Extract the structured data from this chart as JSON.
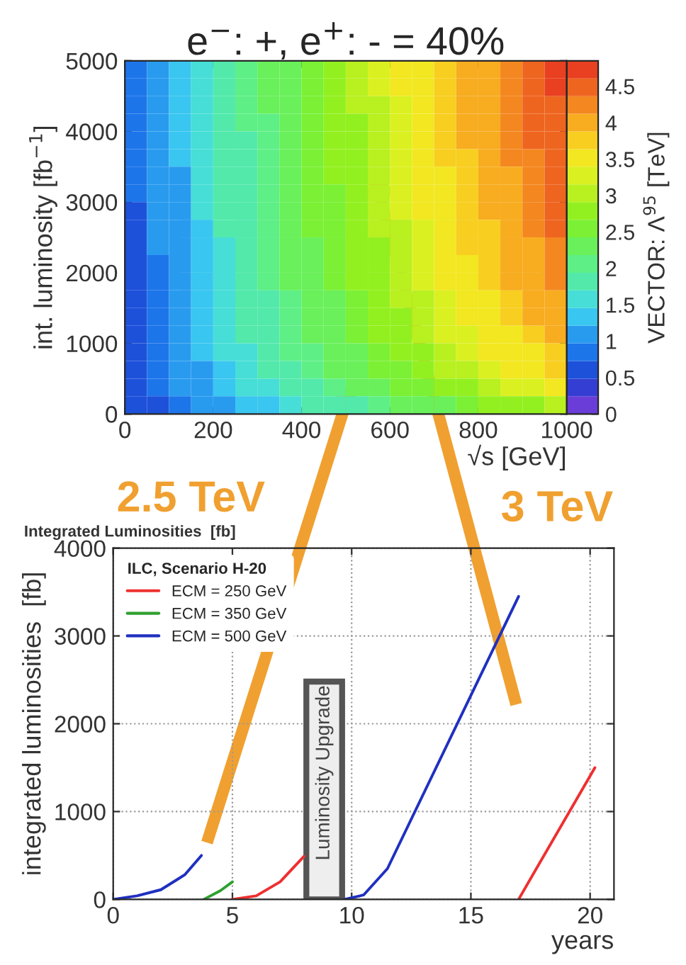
{
  "chart_data": [
    {
      "type": "heatmap",
      "title": "e$^{−}$: +, e$^{+}$: - = 40%",
      "xlabel": "√s [GeV]",
      "ylabel": "int. luminosity [fb$^{−1}$]",
      "clabel": "VECTOR: Λ$^{95}$ [TeV]",
      "x": [
        25,
        75,
        125,
        175,
        225,
        275,
        325,
        375,
        425,
        475,
        525,
        575,
        625,
        675,
        725,
        775,
        825,
        875,
        925,
        975
      ],
      "y": [
        4875,
        4625,
        4375,
        4125,
        3875,
        3625,
        3375,
        3125,
        2875,
        2625,
        2375,
        2125,
        1875,
        1625,
        1375,
        1125,
        875,
        625,
        375,
        125
      ],
      "cells": [
        [
          0.8,
          1.0,
          1.3,
          1.5,
          1.8,
          2.0,
          2.2,
          2.4,
          2.6,
          2.8,
          3.0,
          3.2,
          3.4,
          3.6,
          3.8,
          4.0,
          4.1,
          4.3,
          4.5,
          4.7
        ],
        [
          0.8,
          1.0,
          1.3,
          1.5,
          1.8,
          2.0,
          2.2,
          2.4,
          2.6,
          2.8,
          3.0,
          3.2,
          3.4,
          3.6,
          3.8,
          4.0,
          4.1,
          4.3,
          4.5,
          4.7
        ],
        [
          0.8,
          1.0,
          1.3,
          1.5,
          1.8,
          2.0,
          2.2,
          2.4,
          2.6,
          2.8,
          3.0,
          3.1,
          3.3,
          3.5,
          3.7,
          3.9,
          4.1,
          4.3,
          4.4,
          4.6
        ],
        [
          0.8,
          1.0,
          1.3,
          1.5,
          1.8,
          2.0,
          2.1,
          2.4,
          2.6,
          2.7,
          2.9,
          3.1,
          3.3,
          3.5,
          3.7,
          3.9,
          4.1,
          4.2,
          4.4,
          4.6
        ],
        [
          0.8,
          1.0,
          1.3,
          1.5,
          1.7,
          1.9,
          2.1,
          2.4,
          2.6,
          2.7,
          2.9,
          3.1,
          3.3,
          3.5,
          3.7,
          3.9,
          4.0,
          4.2,
          4.4,
          4.6
        ],
        [
          0.8,
          1.0,
          1.3,
          1.5,
          1.7,
          1.9,
          2.1,
          2.4,
          2.5,
          2.7,
          2.9,
          3.1,
          3.3,
          3.5,
          3.7,
          3.8,
          4.0,
          4.2,
          4.3,
          4.5
        ],
        [
          0.8,
          1.0,
          1.2,
          1.5,
          1.7,
          1.9,
          2.1,
          2.3,
          2.5,
          2.7,
          2.9,
          3.1,
          3.2,
          3.4,
          3.6,
          3.8,
          4.0,
          4.1,
          4.3,
          4.5
        ],
        [
          0.8,
          1.0,
          1.2,
          1.5,
          1.7,
          1.9,
          2.1,
          2.3,
          2.5,
          2.6,
          2.8,
          3.0,
          3.2,
          3.4,
          3.6,
          3.8,
          3.9,
          4.1,
          4.2,
          4.4
        ],
        [
          0.7,
          1.0,
          1.2,
          1.5,
          1.7,
          1.9,
          2.1,
          2.3,
          2.5,
          2.6,
          2.8,
          3.0,
          3.2,
          3.4,
          3.6,
          3.7,
          3.9,
          4.1,
          4.2,
          4.4
        ],
        [
          0.7,
          1.0,
          1.2,
          1.4,
          1.7,
          1.9,
          2.0,
          2.3,
          2.5,
          2.6,
          2.8,
          3.0,
          3.1,
          3.3,
          3.5,
          3.7,
          3.8,
          4.0,
          4.2,
          4.4
        ],
        [
          0.7,
          1.0,
          1.2,
          1.4,
          1.6,
          1.8,
          2.0,
          2.2,
          2.4,
          2.6,
          2.7,
          2.9,
          3.1,
          3.3,
          3.5,
          3.7,
          3.8,
          4.0,
          4.1,
          4.3
        ],
        [
          0.7,
          0.9,
          1.2,
          1.4,
          1.6,
          1.8,
          2.0,
          2.2,
          2.4,
          2.5,
          2.7,
          2.9,
          3.1,
          3.2,
          3.4,
          3.6,
          3.7,
          3.9,
          4.1,
          4.2
        ],
        [
          0.7,
          0.9,
          1.2,
          1.4,
          1.6,
          1.8,
          2.0,
          2.2,
          2.4,
          2.5,
          2.7,
          2.8,
          3.0,
          3.2,
          3.4,
          3.6,
          3.7,
          3.9,
          4.0,
          4.2
        ],
        [
          0.7,
          0.9,
          1.1,
          1.4,
          1.6,
          1.7,
          1.9,
          2.1,
          2.3,
          2.4,
          2.6,
          2.8,
          3.0,
          3.1,
          3.3,
          3.5,
          3.6,
          3.8,
          3.9,
          4.1
        ],
        [
          0.7,
          0.9,
          1.1,
          1.3,
          1.5,
          1.7,
          1.9,
          2.1,
          2.3,
          2.4,
          2.6,
          2.7,
          2.9,
          3.1,
          3.3,
          3.4,
          3.6,
          3.7,
          3.9,
          4.0
        ],
        [
          0.7,
          0.9,
          1.1,
          1.3,
          1.5,
          1.7,
          1.8,
          2.0,
          2.2,
          2.3,
          2.5,
          2.7,
          2.8,
          3.0,
          3.2,
          3.3,
          3.5,
          3.6,
          3.8,
          3.9
        ],
        [
          0.6,
          0.9,
          1.1,
          1.3,
          1.5,
          1.6,
          1.8,
          2.0,
          2.1,
          2.3,
          2.4,
          2.6,
          2.8,
          2.9,
          3.1,
          3.2,
          3.4,
          3.5,
          3.6,
          3.8
        ],
        [
          0.6,
          0.8,
          1.0,
          1.2,
          1.4,
          1.6,
          1.7,
          1.9,
          2.1,
          2.2,
          2.3,
          2.5,
          2.6,
          2.8,
          3.0,
          3.1,
          3.2,
          3.4,
          3.5,
          3.7
        ],
        [
          0.6,
          0.8,
          1.0,
          1.1,
          1.3,
          1.5,
          1.6,
          1.8,
          1.9,
          2.1,
          2.2,
          2.3,
          2.5,
          2.6,
          2.8,
          2.9,
          3.0,
          3.2,
          3.3,
          3.4
        ],
        [
          0.5,
          0.7,
          0.8,
          1.0,
          1.2,
          1.3,
          1.4,
          1.6,
          1.7,
          1.8,
          1.9,
          2.1,
          2.2,
          2.3,
          2.4,
          2.6,
          2.7,
          2.8,
          2.9,
          3.0
        ]
      ],
      "xlim": [
        0,
        1000
      ],
      "xticks": [
        0,
        200,
        400,
        600,
        800,
        1000
      ],
      "ylim": [
        0,
        5000
      ],
      "yticks": [
        0,
        1000,
        2000,
        3000,
        4000,
        5000
      ],
      "clim": [
        0,
        4.85
      ],
      "cticks": [
        0,
        0.5,
        1,
        1.5,
        2,
        2.5,
        3,
        3.5,
        4,
        4.5
      ]
    },
    {
      "type": "line",
      "title": "Integrated Luminosities  [fb]",
      "xlabel": "years",
      "ylabel": "integrated luminosities  [fb]",
      "legend_title": "ILC, Scenario H-20",
      "series": [
        {
          "name": "ECM = 250 GeV",
          "color": "#ee3030",
          "x": [
            5,
            6,
            7,
            8,
            12,
            17,
            20.2
          ],
          "values": [
            0,
            40,
            200,
            490,
            null,
            0,
            1500
          ]
        },
        {
          "name": "ECM = 350 GeV",
          "color": "#30a030",
          "x": [
            3.8,
            4.5,
            5
          ],
          "values": [
            0,
            100,
            200
          ]
        },
        {
          "name": "ECM = 500 GeV",
          "color": "#2030c0",
          "x": [
            0,
            1,
            2,
            3,
            3.7,
            7,
            9.7,
            10.5,
            11.5,
            17
          ],
          "values": [
            0,
            40,
            110,
            280,
            500,
            null,
            0,
            50,
            350,
            3450
          ]
        }
      ],
      "bands": [
        {
          "axis": "x",
          "from": 8.1,
          "to": 9.6,
          "label": "Luminosity Upgrade"
        }
      ],
      "annotations": [
        "2.5 TeV",
        "3 TeV"
      ],
      "xlim": [
        0,
        21
      ],
      "xticks": [
        0,
        5,
        10,
        15,
        20
      ],
      "ylim": [
        0,
        4000
      ],
      "yticks": [
        0,
        1000,
        2000,
        3000,
        4000
      ],
      "grid": true,
      "legend": "top left"
    }
  ]
}
